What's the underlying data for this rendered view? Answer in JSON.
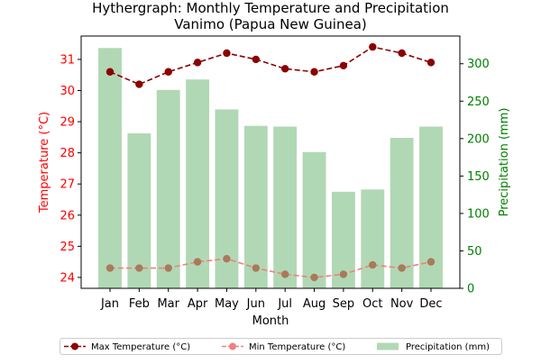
{
  "chart_data": {
    "type": "bar",
    "title": "Hythergraph: Monthly Temperature and Precipitation",
    "subtitle": "Vanimo (Papua New Guinea)",
    "xlabel": "Month",
    "ylabel_left": "Temperature (°C)",
    "ylabel_right": "Precipitation (mm)",
    "categories": [
      "Jan",
      "Feb",
      "Mar",
      "Apr",
      "May",
      "Jun",
      "Jul",
      "Aug",
      "Sep",
      "Oct",
      "Nov",
      "Dec"
    ],
    "ylim_left": [
      23.65,
      31.75
    ],
    "ylim_right": [
      0,
      337
    ],
    "yticks_left": [
      "24",
      "25",
      "26",
      "27",
      "28",
      "29",
      "30",
      "31"
    ],
    "yticks_right": [
      "0",
      "50",
      "100",
      "150",
      "200",
      "250",
      "300"
    ],
    "grid": false,
    "legend_position": "bottom-center",
    "series": [
      {
        "name": "Max Temperature (°C)",
        "kind": "line",
        "axis": "left",
        "color": "#8b0000",
        "marker_color": "#8b0000",
        "line_style": "dashed",
        "values": [
          30.6,
          30.2,
          30.6,
          30.9,
          31.2,
          31.0,
          30.7,
          30.6,
          30.8,
          31.4,
          31.2,
          30.9
        ]
      },
      {
        "name": "Min Temperature (°C)",
        "kind": "line",
        "axis": "left",
        "color": "#f08080",
        "marker_color": "#a87a5a",
        "line_style": "dashed",
        "values": [
          24.3,
          24.3,
          24.3,
          24.5,
          24.6,
          24.3,
          24.1,
          24.0,
          24.1,
          24.4,
          24.3,
          24.5
        ]
      },
      {
        "name": "Precipitation (mm)",
        "kind": "bar",
        "axis": "right",
        "color": "#b1d8b4",
        "values": [
          321,
          207,
          265,
          279,
          239,
          217,
          216,
          182,
          129,
          132,
          201,
          216
        ]
      }
    ],
    "colors": {
      "left_axis": "#ff0000",
      "right_axis": "#008000"
    }
  }
}
